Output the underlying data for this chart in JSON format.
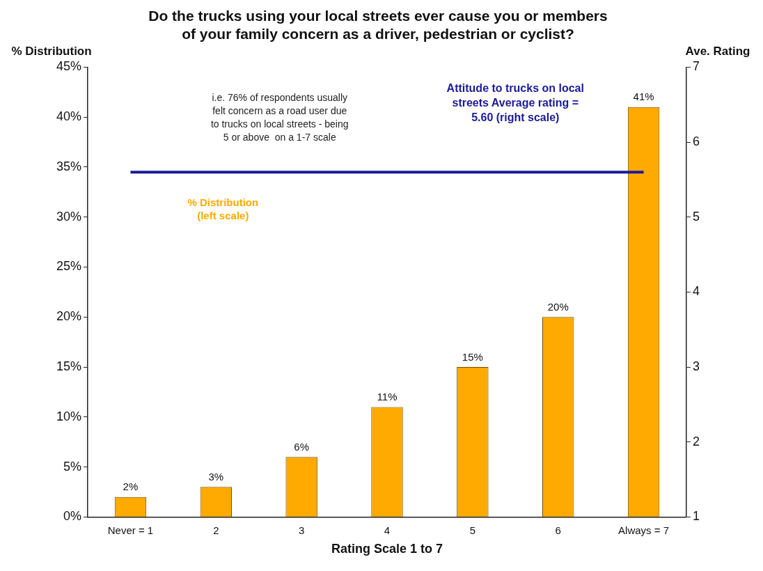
{
  "chart_data": {
    "type": "bar",
    "title": "Do the trucks using your local streets ever cause you or members\nof your family concern as a driver, pedestrian or cyclist?",
    "xlabel": "Rating Scale 1 to 7",
    "ylabel": "% Distribution",
    "y2label": "Ave. Rating",
    "categories": [
      "Never = 1",
      "2",
      "3",
      "4",
      "5",
      "6",
      "Always = 7"
    ],
    "series": [
      {
        "color": "#ffaa00",
        "values": [
          2,
          3,
          6,
          11,
          15,
          20,
          41
        ],
        "value_labels": [
          "2%",
          "3%",
          "6%",
          "11%",
          "15%",
          "20%",
          "41%"
        ]
      }
    ],
    "ylim": [
      0,
      45
    ],
    "yticks": [
      {
        "value": 0,
        "label": "0%"
      },
      {
        "value": 5,
        "label": "5%"
      },
      {
        "value": 10,
        "label": "10%"
      },
      {
        "value": 15,
        "label": "15%"
      },
      {
        "value": 20,
        "label": "20%"
      },
      {
        "value": 25,
        "label": "25%"
      },
      {
        "value": 30,
        "label": "30%"
      },
      {
        "value": 35,
        "label": "35%"
      },
      {
        "value": 40,
        "label": "40%"
      },
      {
        "value": 45,
        "label": "45%"
      }
    ],
    "y2lim": [
      1,
      7
    ],
    "y2ticks": [
      1,
      2,
      3,
      4,
      5,
      6,
      7
    ],
    "ref_lines": [
      {
        "axis": "y2",
        "value": 5.6,
        "label": "Attitude to trucks on local\nstreets Average rating =\n5.60 (right scale)",
        "color": "#1a1a99"
      }
    ],
    "annotations": [
      "i.e. 76% of respondents usually\nfelt concern as a road user due\nto trucks on local streets - being\n5 or above  on a 1-7 scale",
      "% Distribution\n(left scale)"
    ],
    "grid": false,
    "legend": false
  }
}
